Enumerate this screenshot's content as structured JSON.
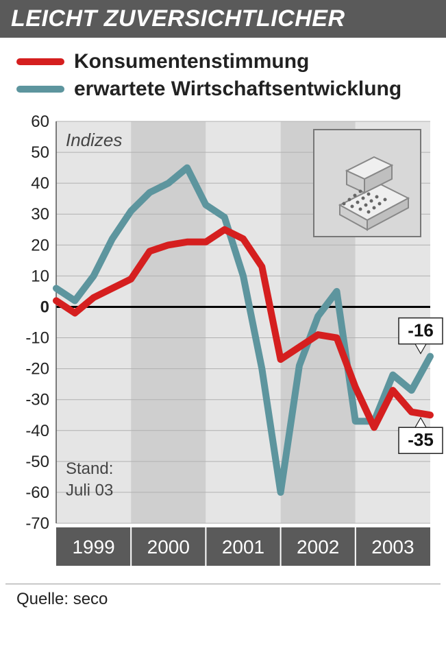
{
  "title": "LEICHT ZUVERSICHTLICHER",
  "legend": {
    "series1": {
      "label": "Konsumentenstimmung",
      "color": "#d51f1f"
    },
    "series2": {
      "label": "erwartete Wirtschaftsentwicklung",
      "color": "#5d959e"
    }
  },
  "chart": {
    "type": "line",
    "ylim": [
      -70,
      60
    ],
    "ytick_step": 10,
    "yticks": [
      60,
      50,
      40,
      30,
      20,
      10,
      0,
      -10,
      -20,
      -30,
      -40,
      -50,
      -60,
      -70
    ],
    "xlabels": [
      "1999",
      "2000",
      "2001",
      "2002",
      "2003"
    ],
    "band_colors": [
      "#e5e5e5",
      "#cfcfcf",
      "#e5e5e5",
      "#cfcfcf",
      "#e5e5e5"
    ],
    "grid_color": "#b0b0b0",
    "zero_line_color": "#000000",
    "tick_label_fontsize": 24,
    "axis_label_fontsize": 24,
    "x_axis_bg": "#5a5a5a",
    "x_axis_text_color": "#ffffff",
    "indices_label": "Indizes",
    "stand_label_line1": "Stand:",
    "stand_label_line2": "Juli 03",
    "series1": {
      "color": "#d51f1f",
      "width": 10,
      "callout": "-35",
      "data": [
        2,
        -2,
        3,
        6,
        9,
        18,
        20,
        21,
        21,
        25,
        22,
        13,
        -17,
        -13,
        -9,
        -10,
        -26,
        -39,
        -27,
        -34,
        -35
      ]
    },
    "series2": {
      "color": "#5d959e",
      "width": 10,
      "callout": "-16",
      "data": [
        6,
        2,
        10,
        22,
        31,
        37,
        40,
        45,
        33,
        29,
        10,
        -20,
        -60,
        -19,
        -3,
        5,
        -37,
        -37,
        -22,
        -27,
        -16
      ]
    },
    "callout_bg": "#ffffff",
    "callout_border": "#222222",
    "callout_fontsize": 26,
    "icon_box": {
      "bg": "#d8d8d8",
      "border": "#777777",
      "register_fill": "#efefef",
      "register_stroke": "#888888"
    }
  },
  "source_label": "Quelle: seco"
}
